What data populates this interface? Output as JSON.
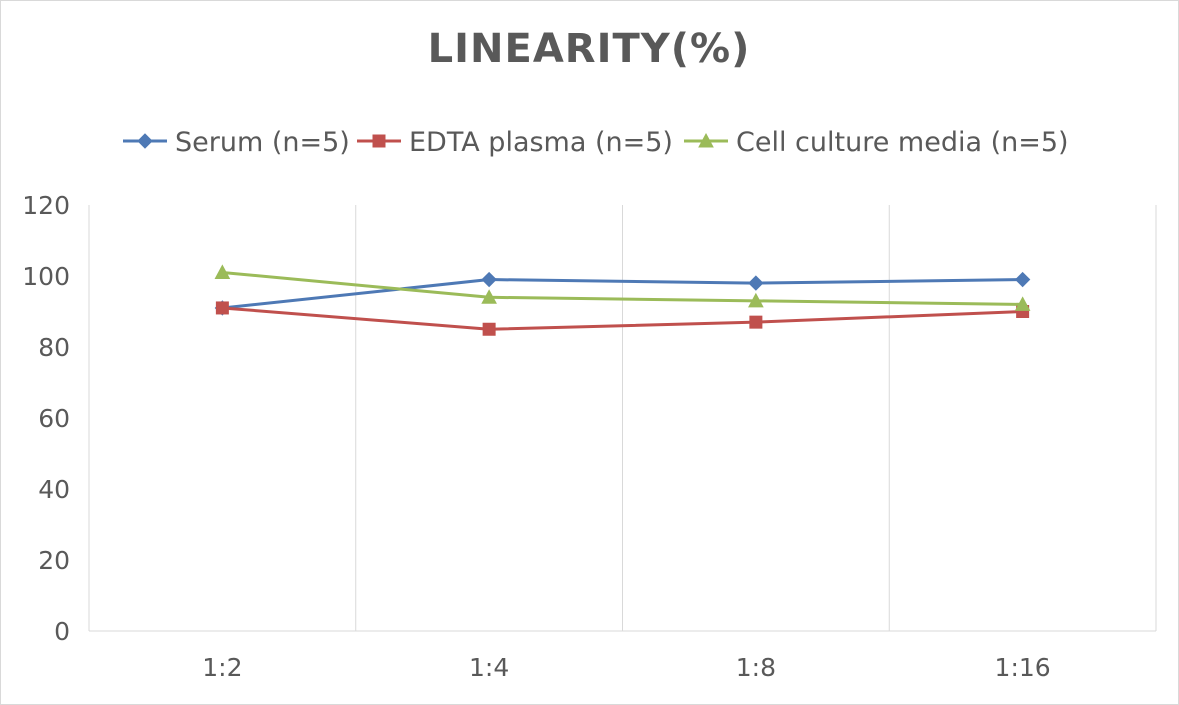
{
  "chart_data": {
    "type": "line",
    "title": "LINEARITY(%)",
    "xlabel": "",
    "ylabel": "",
    "categories": [
      "1:2",
      "1:4",
      "1:8",
      "1:16"
    ],
    "ylim": [
      0,
      120
    ],
    "yticks": [
      0,
      20,
      40,
      60,
      80,
      100,
      120
    ],
    "grid": "vertical",
    "legend_position": "top",
    "series": [
      {
        "name": "Serum (n=5)",
        "values": [
          91,
          99,
          98,
          99
        ],
        "color": "#4e79b5",
        "marker": "diamond"
      },
      {
        "name": "EDTA plasma (n=5)",
        "values": [
          91,
          85,
          87,
          90
        ],
        "color": "#c0504d",
        "marker": "square"
      },
      {
        "name": "Cell culture media (n=5)",
        "values": [
          101,
          94,
          93,
          92
        ],
        "color": "#9bbb59",
        "marker": "triangle"
      }
    ]
  }
}
